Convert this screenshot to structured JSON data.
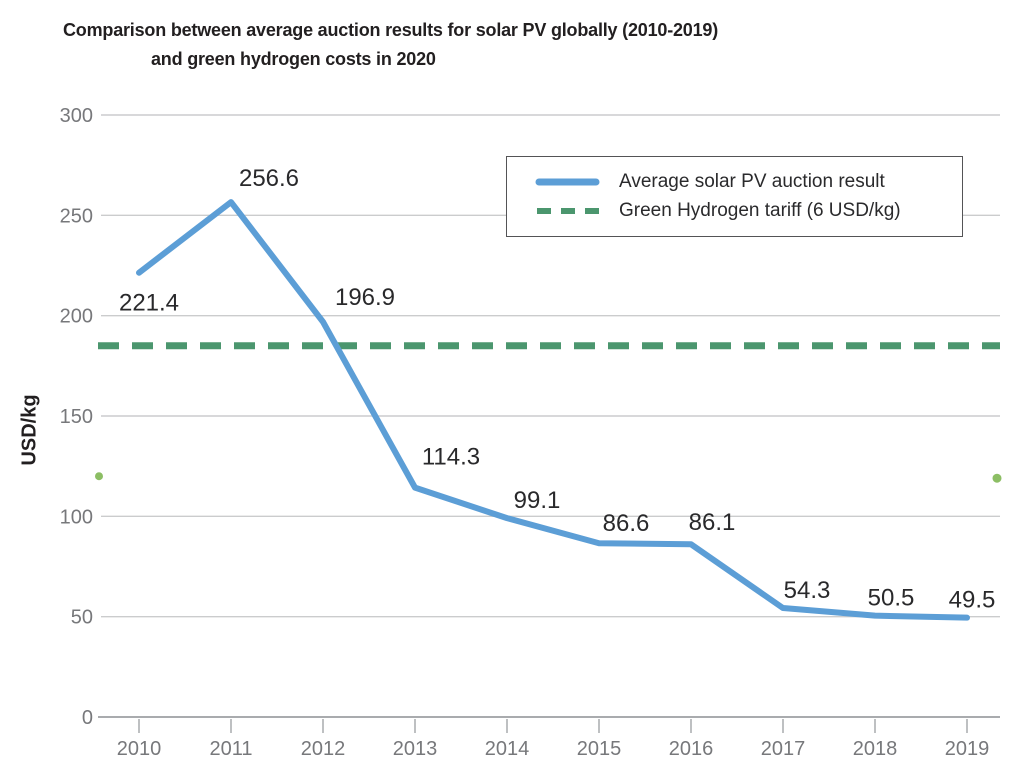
{
  "chart": {
    "title_line1": "Comparison between average auction results for solar PV globally (2010-2019)",
    "title_line2": "and green hydrogen costs in 2020",
    "ylabel": "USD/kg"
  },
  "legend": {
    "items": [
      {
        "label": "Average solar PV auction result",
        "style": "solid",
        "color": "#5C9ED6"
      },
      {
        "label": "Green Hydrogen tariff (6 USD/kg)",
        "style": "dashed",
        "color": "#4B966E"
      }
    ]
  },
  "chart_data": {
    "type": "line",
    "title": "Comparison between average auction results for solar PV globally (2010-2019) and green hydrogen costs in 2020",
    "x": [
      2010,
      2011,
      2012,
      2013,
      2014,
      2015,
      2016,
      2017,
      2018,
      2019
    ],
    "series": [
      {
        "name": "Average solar PV auction result",
        "type": "line",
        "style": "solid",
        "color": "#5C9ED6",
        "values": [
          221.4,
          256.6,
          196.9,
          114.3,
          99.1,
          86.6,
          86.1,
          54.3,
          50.5,
          49.5
        ]
      },
      {
        "name": "Green Hydrogen tariff (6 USD/kg)",
        "type": "hline",
        "style": "dashed",
        "color": "#4B966E",
        "value": 185,
        "tariff_label": "6 USD/kg"
      }
    ],
    "data_labels": [
      "221.4",
      "256.6",
      "196.9",
      "114.3",
      "99.1",
      "86.6",
      "86.1",
      "54.3",
      "50.5",
      "49.5"
    ],
    "ylabel": "USD/kg",
    "xlabel": "",
    "ylim": [
      0,
      300
    ],
    "yticks": [
      0,
      50,
      100,
      150,
      200,
      250,
      300
    ],
    "grid": true,
    "legend_position": "upper right",
    "edge_dots": {
      "value": 120,
      "color": "#8CBE64",
      "sides": [
        "left",
        "right"
      ]
    }
  },
  "colors": {
    "title": "#221f20",
    "tick_label": "#77787b",
    "gridline": "#cbcccd",
    "axis_line": "#a9abae",
    "data_label": "#29292b",
    "legend_border": "#545456"
  }
}
